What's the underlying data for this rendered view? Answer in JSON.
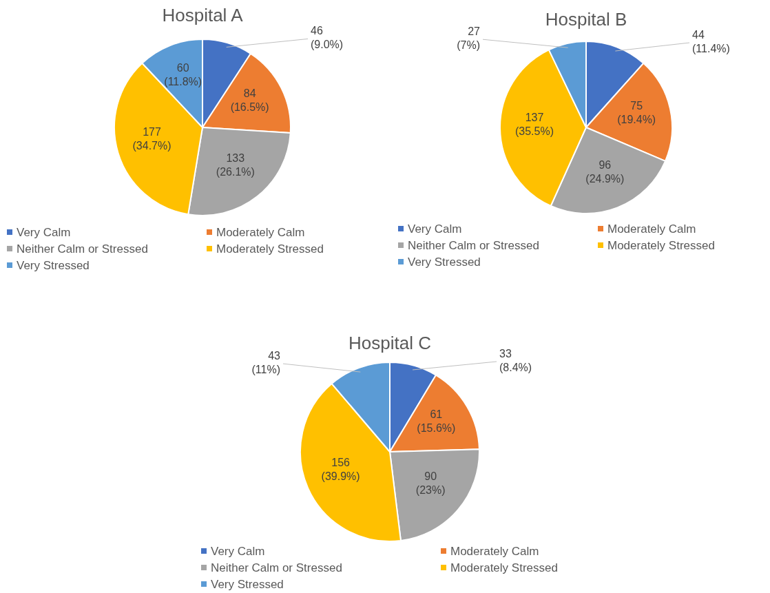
{
  "chart_data": [
    {
      "type": "pie",
      "title": "Hospital A",
      "categories": [
        "Very Calm",
        "Moderately Calm",
        "Neither Calm or Stressed",
        "Moderately Stressed",
        "Very Stressed"
      ],
      "values": [
        46,
        84,
        133,
        177,
        60
      ],
      "colors": [
        "#4472c4",
        "#ed7d31",
        "#a5a5a5",
        "#ffc000",
        "#5b9bd5"
      ],
      "value_labels": [
        "46 (9.0%)",
        "84 (16.5%)",
        "133 (26.1%)",
        "177 (34.7%)",
        "60 (11.8%)"
      ],
      "legend": "bottom"
    },
    {
      "type": "pie",
      "title": "Hospital B",
      "categories": [
        "Very Calm",
        "Moderately Calm",
        "Neither Calm or Stressed",
        "Moderately Stressed",
        "Very Stressed"
      ],
      "values": [
        44,
        75,
        96,
        137,
        27
      ],
      "colors": [
        "#4472c4",
        "#ed7d31",
        "#a5a5a5",
        "#ffc000",
        "#5b9bd5"
      ],
      "value_labels": [
        "44 (11.4%)",
        "75 (19.4%)",
        "96 (24.9%)",
        "137 (35.5%)",
        "27 (7%)"
      ],
      "legend": "bottom"
    },
    {
      "type": "pie",
      "title": "Hospital C",
      "categories": [
        "Very Calm",
        "Moderately Calm",
        "Neither Calm or Stressed",
        "Moderately Stressed",
        "Very Stressed"
      ],
      "values": [
        33,
        61,
        90,
        156,
        43
      ],
      "colors": [
        "#4472c4",
        "#ed7d31",
        "#a5a5a5",
        "#ffc000",
        "#5b9bd5"
      ],
      "value_labels": [
        "33 (8.4%)",
        "61 (15.6%)",
        "90 (23%)",
        "156 (39.9%)",
        "43 (11%)"
      ],
      "legend": "bottom"
    }
  ]
}
